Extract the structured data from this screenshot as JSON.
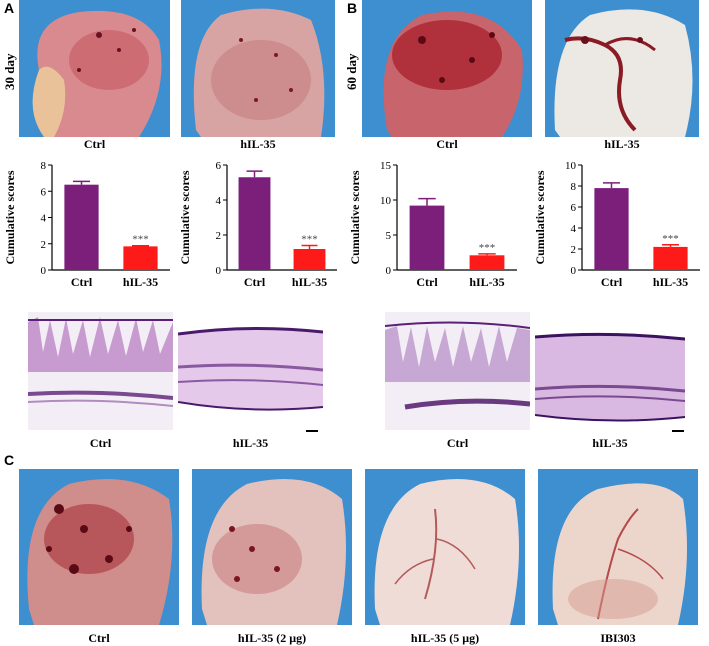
{
  "panels": {
    "A": {
      "label": "A",
      "day": "30 day",
      "photo_captions": [
        "Ctrl",
        "hIL-35"
      ],
      "histo_captions": [
        "Ctrl",
        "hIL-35"
      ]
    },
    "B": {
      "label": "B",
      "day": "60 day",
      "photo_captions": [
        "Ctrl",
        "hIL-35"
      ],
      "histo_captions": [
        "Ctrl",
        "hIL-35"
      ]
    },
    "C": {
      "label": "C",
      "photo_captions": [
        "Ctrl",
        "hIL-35 (2 μg)",
        "hIL-35 (5 μg)",
        "IBI303"
      ]
    }
  },
  "colors": {
    "ctrl_bar": "#7b1f7b",
    "treat_bar": "#ff1a1a",
    "photo_bg": "#3d8fd0"
  },
  "chart_data": [
    {
      "type": "bar",
      "categories": [
        "Ctrl",
        "hIL-35"
      ],
      "values": [
        6.5,
        1.8
      ],
      "errors": [
        0.25,
        0.05
      ],
      "ylabel": "Cumulative scores",
      "ylim": [
        0,
        8
      ],
      "yticks": [
        0,
        2,
        4,
        6,
        8
      ],
      "annotation": "***"
    },
    {
      "type": "bar",
      "categories": [
        "Ctrl",
        "hIL-35"
      ],
      "values": [
        5.3,
        1.2
      ],
      "errors": [
        0.35,
        0.2
      ],
      "ylabel": "Cumulative scores",
      "ylim": [
        0,
        6
      ],
      "yticks": [
        0,
        2,
        4,
        6
      ],
      "annotation": "***"
    },
    {
      "type": "bar",
      "categories": [
        "Ctrl",
        "hIL-35"
      ],
      "values": [
        9.2,
        2.1
      ],
      "errors": [
        1.0,
        0.2
      ],
      "ylabel": "Cumulative scores",
      "ylim": [
        0,
        15
      ],
      "yticks": [
        0,
        5,
        10,
        15
      ],
      "annotation": "***"
    },
    {
      "type": "bar",
      "categories": [
        "Ctrl",
        "hIL-35"
      ],
      "values": [
        7.8,
        2.2
      ],
      "errors": [
        0.5,
        0.2
      ],
      "ylabel": "Cumulative scores",
      "ylim": [
        0,
        10
      ],
      "yticks": [
        0,
        2,
        4,
        6,
        8,
        10
      ],
      "annotation": "***"
    }
  ]
}
